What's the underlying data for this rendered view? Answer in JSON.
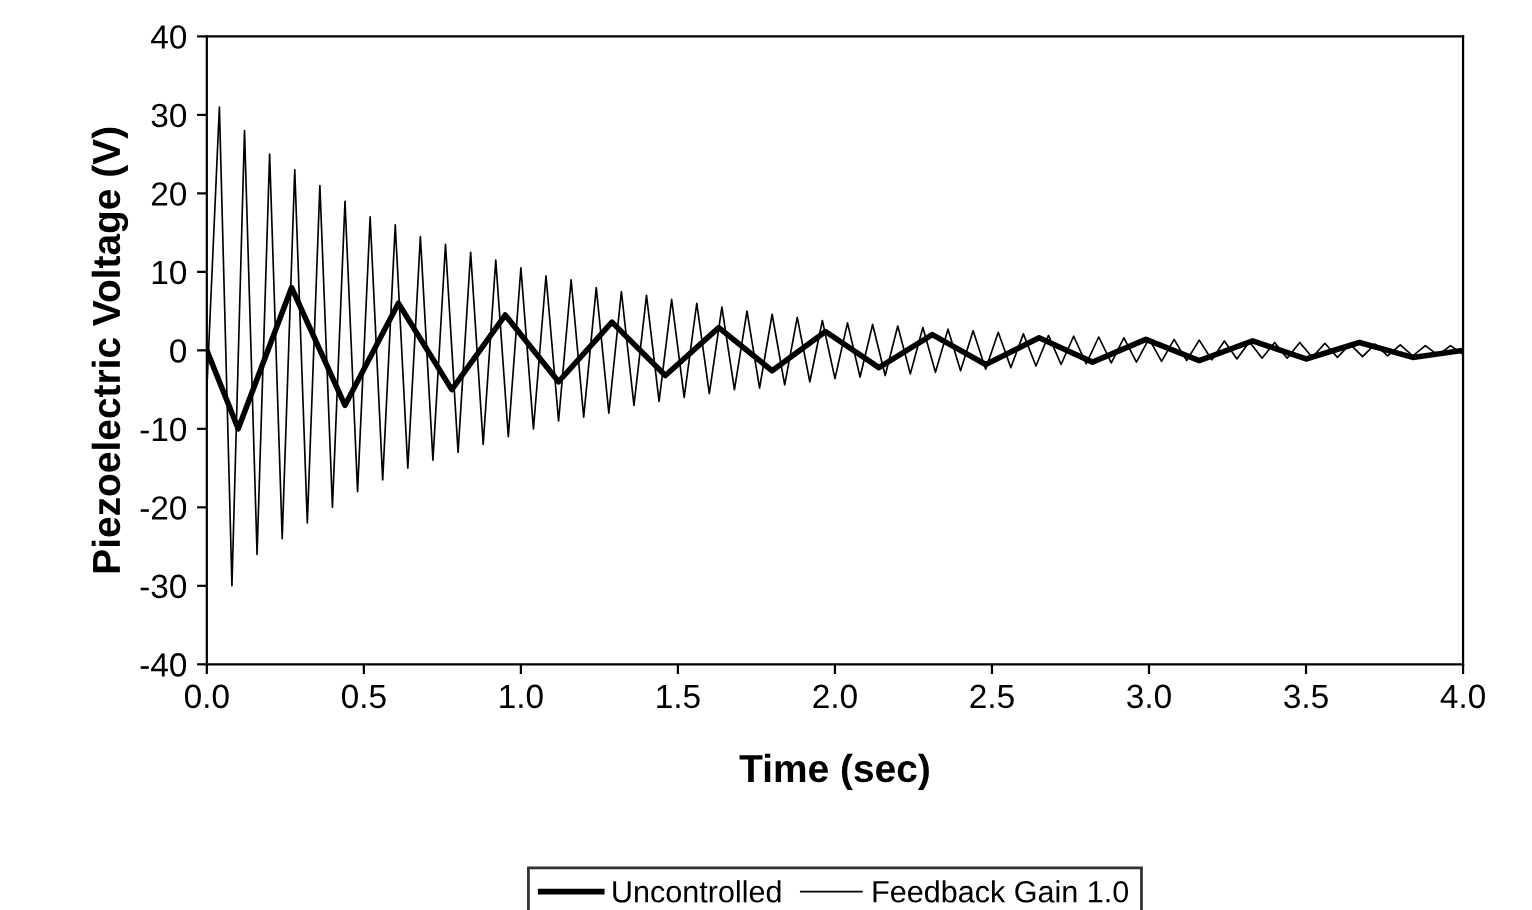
{
  "chart_data": {
    "type": "line",
    "xlabel": "Time (sec)",
    "ylabel": "Piezoelectric Voltage (V)",
    "xlim": [
      0,
      4
    ],
    "ylim": [
      -40,
      40
    ],
    "xticks": [
      {
        "value": 0,
        "label": "0.0"
      },
      {
        "value": 0.5,
        "label": "0.5"
      },
      {
        "value": 1,
        "label": "1.0"
      },
      {
        "value": 1.5,
        "label": "1.5"
      },
      {
        "value": 2,
        "label": "2.0"
      },
      {
        "value": 2.5,
        "label": "2.5"
      },
      {
        "value": 3,
        "label": "3.0"
      },
      {
        "value": 3.5,
        "label": "3.5"
      },
      {
        "value": 4,
        "label": "4.0"
      }
    ],
    "yticks": [
      -40,
      -30,
      -20,
      -10,
      0,
      10,
      20,
      30,
      40
    ],
    "grid": false,
    "legend": "bottom",
    "marker": "none",
    "line_style": "solid",
    "series": [
      {
        "name": "Uncontrolled",
        "color": "#000000",
        "x": [
          0,
          0.1,
          0.27,
          0.44,
          0.61,
          0.78,
          0.95,
          1.12,
          1.29,
          1.46,
          1.63,
          1.8,
          1.97,
          2.14,
          2.31,
          2.48,
          2.65,
          2.82,
          2.99,
          3.16,
          3.33,
          3.5,
          3.67,
          3.84,
          4.0
        ],
        "values": [
          0,
          -10,
          8,
          -7,
          6,
          -5,
          4.5,
          -4,
          3.6,
          -3.2,
          2.9,
          -2.6,
          2.4,
          -2.2,
          2.0,
          -1.8,
          1.6,
          -1.5,
          1.4,
          -1.3,
          1.2,
          -1.1,
          1.0,
          -0.9,
          0
        ]
      },
      {
        "name": "Feedback Gain 1.0",
        "color": "#000000",
        "x": [
          0,
          0.04,
          0.08,
          0.12,
          0.16,
          0.2,
          0.24,
          0.28,
          0.32,
          0.36,
          0.4,
          0.44,
          0.48,
          0.52,
          0.56,
          0.6,
          0.64,
          0.68,
          0.72,
          0.76,
          0.8,
          0.84,
          0.88,
          0.92,
          0.96,
          1.0,
          1.04,
          1.08,
          1.12,
          1.16,
          1.2,
          1.24,
          1.28,
          1.32,
          1.36,
          1.4,
          1.44,
          1.48,
          1.52,
          1.56,
          1.6,
          1.64,
          1.68,
          1.72,
          1.76,
          1.8,
          1.84,
          1.88,
          1.92,
          1.96,
          2.0,
          2.04,
          2.08,
          2.12,
          2.16,
          2.2,
          2.24,
          2.28,
          2.32,
          2.36,
          2.4,
          2.44,
          2.48,
          2.52,
          2.56,
          2.6,
          2.64,
          2.68,
          2.72,
          2.76,
          2.8,
          2.84,
          2.88,
          2.92,
          2.96,
          3.0,
          3.04,
          3.08,
          3.12,
          3.16,
          3.2,
          3.24,
          3.28,
          3.32,
          3.36,
          3.4,
          3.44,
          3.48,
          3.52,
          3.56,
          3.6,
          3.64,
          3.68,
          3.72,
          3.76,
          3.8,
          3.84,
          3.88,
          3.92,
          3.96,
          4.0
        ],
        "values": [
          -5,
          31,
          -30,
          28,
          -26,
          25,
          -24,
          23,
          -22,
          21,
          -20,
          19,
          -18,
          17,
          -16.5,
          16,
          -15,
          14.5,
          -14,
          13.5,
          -13,
          12.5,
          -12,
          11.5,
          -11,
          10.5,
          -10,
          9.5,
          -9,
          9,
          -8.5,
          8,
          -8,
          7.5,
          -7,
          7,
          -6.5,
          6.5,
          -6,
          6,
          -5.5,
          5.5,
          -5,
          5,
          -4.8,
          4.6,
          -4.4,
          4.2,
          -4,
          3.8,
          -3.6,
          3.5,
          -3.4,
          3.3,
          -3.2,
          3.1,
          -3,
          2.9,
          -2.8,
          2.7,
          -2.6,
          2.5,
          -2.4,
          2.3,
          -2.2,
          2.1,
          -2,
          1.9,
          -1.8,
          1.8,
          -1.7,
          1.7,
          -1.6,
          1.6,
          -1.5,
          1.5,
          -1.4,
          1.4,
          -1.3,
          1.3,
          -1.2,
          1.2,
          -1.1,
          1.1,
          -1,
          1,
          -1,
          1,
          -0.9,
          0.9,
          -0.9,
          0.8,
          -0.8,
          0.8,
          -0.7,
          0.7,
          -0.7,
          0.6,
          -0.6,
          0.6,
          -0.5
        ]
      }
    ]
  }
}
